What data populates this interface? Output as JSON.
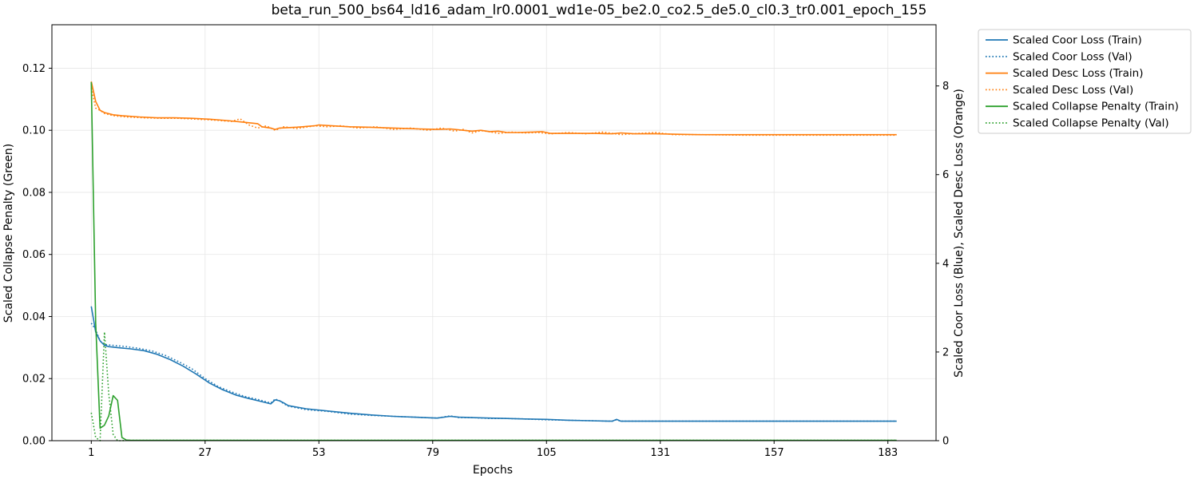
{
  "chart_data": {
    "type": "line",
    "title": "beta_run_500_bs64_ld16_adam_lr0.0001_wd1e-05_be2.0_co2.5_de5.0_cl0.3_tr0.001_epoch_155",
    "xlabel": "Epochs",
    "ylabel_left": "Scaled Collapse Penalty (Green)",
    "ylabel_right": "Scaled Coor Loss (Blue), Scaled Desc Loss (Orange)",
    "xlim": [
      -8,
      194
    ],
    "xticks": [
      1,
      27,
      53,
      79,
      105,
      131,
      157,
      183
    ],
    "ylim_left": [
      0,
      0.134
    ],
    "yticks_left": [
      "0.00",
      "0.02",
      "0.04",
      "0.06",
      "0.08",
      "0.10",
      "0.12"
    ],
    "ylim_right": [
      0,
      9.38
    ],
    "yticks_right": [
      "0",
      "2",
      "4",
      "6",
      "8"
    ],
    "grid": true,
    "legend_position": "outside-upper-right",
    "colors": {
      "blue": "#1f77b4",
      "orange": "#ff7f0e",
      "green": "#2ca02c"
    },
    "series": [
      {
        "name": "Scaled Coor Loss (Train)",
        "axis": "right",
        "color": "#1f77b4",
        "style": "solid",
        "x": [
          1,
          2,
          3,
          4,
          5,
          7,
          10,
          13,
          16,
          19,
          22,
          25,
          28,
          31,
          34,
          37,
          40,
          42,
          43,
          44,
          45,
          46,
          50,
          55,
          60,
          65,
          70,
          75,
          80,
          83,
          85,
          88,
          92,
          96,
          100,
          105,
          110,
          115,
          120,
          121,
          122,
          123,
          125,
          130,
          140,
          150,
          160,
          170,
          185
        ],
        "values": [
          3.03,
          2.45,
          2.25,
          2.15,
          2.12,
          2.1,
          2.07,
          2.03,
          1.95,
          1.83,
          1.68,
          1.5,
          1.3,
          1.15,
          1.03,
          0.95,
          0.88,
          0.83,
          0.92,
          0.9,
          0.85,
          0.79,
          0.72,
          0.67,
          0.62,
          0.58,
          0.55,
          0.53,
          0.51,
          0.55,
          0.53,
          0.52,
          0.51,
          0.5,
          0.49,
          0.48,
          0.46,
          0.45,
          0.44,
          0.48,
          0.44,
          0.44,
          0.44,
          0.44,
          0.44,
          0.44,
          0.44,
          0.44,
          0.44
        ]
      },
      {
        "name": "Scaled Coor Loss (Val)",
        "axis": "right",
        "color": "#1f77b4",
        "style": "dotted",
        "x": [
          1,
          2,
          3,
          4,
          6,
          9,
          12,
          15,
          18,
          21,
          24,
          27,
          30,
          33,
          36,
          39,
          42,
          43,
          44,
          45,
          46,
          50,
          55,
          60,
          65,
          70,
          75,
          80,
          83,
          85,
          88,
          92,
          96,
          100,
          105,
          110,
          115,
          120,
          121,
          122,
          130,
          140,
          150,
          160,
          170,
          185
        ],
        "values": [
          2.65,
          2.5,
          2.25,
          2.17,
          2.15,
          2.12,
          2.08,
          2.02,
          1.92,
          1.78,
          1.62,
          1.4,
          1.22,
          1.1,
          1.0,
          0.93,
          0.85,
          0.94,
          0.9,
          0.83,
          0.78,
          0.7,
          0.66,
          0.6,
          0.57,
          0.55,
          0.53,
          0.51,
          0.56,
          0.52,
          0.52,
          0.5,
          0.5,
          0.49,
          0.47,
          0.46,
          0.45,
          0.44,
          0.47,
          0.44,
          0.44,
          0.44,
          0.44,
          0.44,
          0.44,
          0.44
        ]
      },
      {
        "name": "Scaled Desc Loss (Train)",
        "axis": "right",
        "color": "#ff7f0e",
        "style": "solid",
        "x": [
          1,
          2,
          3,
          4,
          6,
          8,
          12,
          16,
          20,
          24,
          28,
          32,
          36,
          39,
          40,
          42,
          43,
          44,
          48,
          52,
          53,
          56,
          60,
          64,
          70,
          76,
          80,
          83,
          86,
          88,
          90,
          92,
          94,
          96,
          98,
          102,
          104,
          106,
          110,
          116,
          120,
          122,
          125,
          130,
          135,
          140,
          150,
          160,
          170,
          185
        ],
        "values": [
          8.1,
          7.65,
          7.45,
          7.4,
          7.35,
          7.33,
          7.3,
          7.28,
          7.28,
          7.27,
          7.25,
          7.22,
          7.18,
          7.15,
          7.08,
          7.05,
          7.02,
          7.05,
          7.07,
          7.1,
          7.12,
          7.1,
          7.08,
          7.07,
          7.05,
          7.03,
          7.02,
          7.03,
          7.0,
          6.98,
          7.0,
          6.97,
          6.98,
          6.95,
          6.95,
          6.96,
          6.97,
          6.93,
          6.93,
          6.93,
          6.92,
          6.94,
          6.92,
          6.92,
          6.91,
          6.9,
          6.9,
          6.9,
          6.9,
          6.9
        ]
      },
      {
        "name": "Scaled Desc Loss (Val)",
        "axis": "right",
        "color": "#ff7f0e",
        "style": "dotted",
        "x": [
          1,
          2,
          3,
          4,
          6,
          9,
          13,
          17,
          21,
          25,
          29,
          33,
          35,
          37,
          39,
          41,
          43,
          45,
          48,
          52,
          55,
          58,
          62,
          66,
          70,
          74,
          78,
          81,
          84,
          86,
          88,
          90,
          92,
          94,
          97,
          100,
          103,
          106,
          110,
          114,
          118,
          122,
          126,
          130,
          134,
          140,
          150,
          160,
          170,
          185
        ],
        "values": [
          7.95,
          7.5,
          7.45,
          7.38,
          7.33,
          7.3,
          7.28,
          7.27,
          7.27,
          7.25,
          7.23,
          7.2,
          7.26,
          7.12,
          7.05,
          7.1,
          7.0,
          7.08,
          7.04,
          7.1,
          7.08,
          7.1,
          7.05,
          7.08,
          7.02,
          7.05,
          7.0,
          7.05,
          6.98,
          7.02,
          6.94,
          6.99,
          6.97,
          6.93,
          6.96,
          6.94,
          6.95,
          6.92,
          6.95,
          6.92,
          6.96,
          6.9,
          6.93,
          6.95,
          6.9,
          6.9,
          6.89,
          6.89,
          6.89,
          6.89
        ]
      },
      {
        "name": "Scaled Collapse Penalty (Train)",
        "axis": "left",
        "color": "#2ca02c",
        "style": "solid",
        "x": [
          1,
          2,
          3,
          4,
          5,
          6,
          7,
          8,
          9,
          10,
          12,
          20,
          40,
          80,
          120,
          160,
          185
        ],
        "values": [
          0.1155,
          0.038,
          0.004,
          0.005,
          0.008,
          0.0145,
          0.013,
          0.001,
          0.0002,
          0.0001,
          0.0001,
          0.0001,
          0.0001,
          0.0001,
          0.0001,
          0.0001,
          0.0001
        ]
      },
      {
        "name": "Scaled Collapse Penalty (Val)",
        "axis": "left",
        "color": "#2ca02c",
        "style": "dotted",
        "x": [
          1,
          2,
          3,
          4,
          5,
          6,
          7,
          8,
          9,
          12,
          20,
          40,
          80,
          120,
          160,
          185
        ],
        "values": [
          0.009,
          0.001,
          0.0,
          0.035,
          0.015,
          0.002,
          0.0,
          0.0,
          0.0001,
          0.0001,
          0.0001,
          0.0001,
          0.0001,
          0.0001,
          0.0001,
          0.0001
        ]
      }
    ]
  }
}
